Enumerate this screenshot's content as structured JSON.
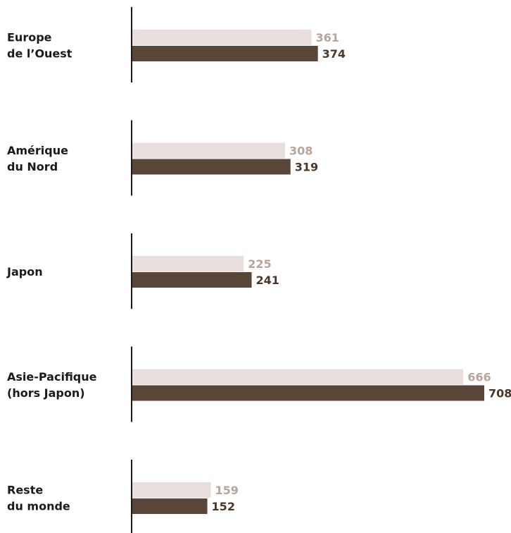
{
  "chart_data": {
    "type": "bar",
    "orientation": "horizontal",
    "categories": [
      [
        "Europe",
        "de l’Ouest"
      ],
      [
        "Amérique",
        "du Nord"
      ],
      [
        "Japon"
      ],
      [
        "Asie-Pacifique",
        "(hors Japon)"
      ],
      [
        "Reste",
        "du monde"
      ]
    ],
    "series": [
      {
        "values": [
          361,
          308,
          225,
          666,
          159
        ],
        "color": "#e8dedc",
        "label_color": "#b7a599"
      },
      {
        "values": [
          374,
          319,
          241,
          708,
          152
        ],
        "color": "#5a4539",
        "label_color": "#4a372c"
      }
    ],
    "title": "",
    "xlabel": "",
    "ylabel": "",
    "xlim": [
      0,
      708
    ],
    "grid": false,
    "legend": "none"
  }
}
